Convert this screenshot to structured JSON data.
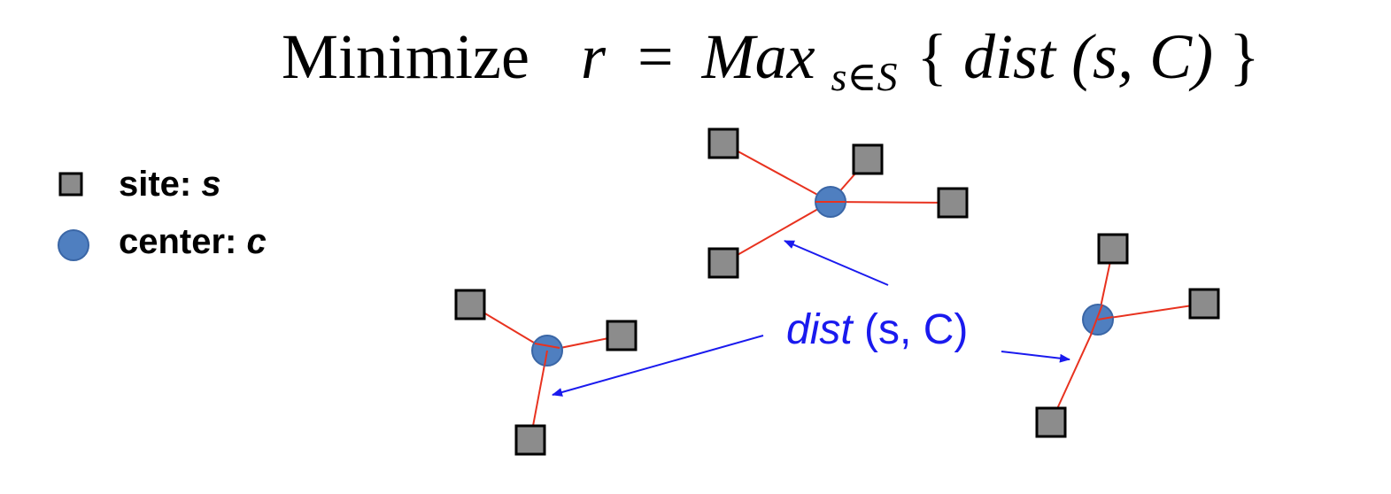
{
  "formula": {
    "word": "Minimize",
    "lhs": "r",
    "equals": "=",
    "max": "Max",
    "subscript": "s∈S",
    "open_brace": "{",
    "dist": "dist",
    "args": "(s, C)",
    "close_brace": "}"
  },
  "legend": {
    "site_label": "site: ",
    "site_var": "s",
    "center_label": "center: ",
    "center_var": "c"
  },
  "annotation": {
    "dist": "dist",
    "args": "(s, C)"
  },
  "colors": {
    "site_fill": "#8c8c8c",
    "site_stroke": "#000000",
    "center_fill": "#4f7fc0",
    "center_stroke": "#3a66a6",
    "edge": "#e8321f",
    "arrow": "#1a1aee",
    "annotation_text": "#1a1aee"
  },
  "clusters": [
    {
      "name": "top",
      "center_index": 0,
      "site_count": 4
    },
    {
      "name": "left",
      "center_index": 1,
      "site_count": 3
    },
    {
      "name": "right",
      "center_index": 2,
      "site_count": 3
    }
  ]
}
